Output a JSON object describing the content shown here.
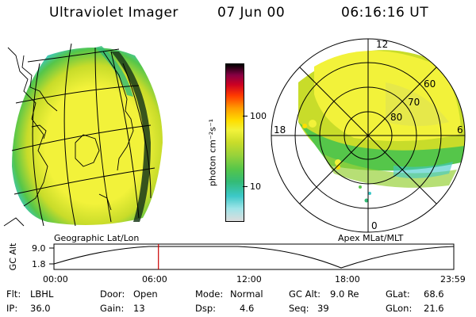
{
  "header": {
    "instrument": "Ultraviolet Imager",
    "date": "07 Jun 00",
    "time": "06:16:16 UT"
  },
  "left_map": {
    "caption": "Geographic Lat/Lon"
  },
  "right_map": {
    "caption": "Apex MLat/MLT",
    "mlt_labels": [
      "12",
      "18",
      "6",
      "0"
    ],
    "lat_labels": [
      "60",
      "70",
      "80"
    ]
  },
  "colorbar": {
    "unit_label": "photon cm⁻²s⁻¹",
    "ticks": [
      "100",
      "10"
    ],
    "colors": [
      "#dcdcdc",
      "#9fe4e8",
      "#3cc8c8",
      "#33bb77",
      "#55c64a",
      "#98d23a",
      "#c8dc2a",
      "#f2f23a",
      "#ffde00",
      "#ff9c00",
      "#ff3a00",
      "#cc0022",
      "#880044",
      "#3a1040",
      "#000000"
    ]
  },
  "timeline": {
    "y_axis_label": "GC Alt",
    "y_ticks": [
      "9.0",
      "1.8"
    ],
    "x_ticks": [
      "00:00",
      "06:00",
      "12:00",
      "18:00",
      "23:59"
    ],
    "current_time_fraction": 0.2613
  },
  "info": {
    "filter_label": "Flt:",
    "filter_value": "LBHL",
    "ip_label": "IP:",
    "ip_value": "36.0",
    "door_label": "Door:",
    "door_value": "Open",
    "gain_label": "Gain:",
    "gain_value": "13",
    "mode_label": "Mode:",
    "mode_value": "Normal",
    "dsp_label": "Dsp:",
    "dsp_value": "4.6",
    "gcalt_label": "GC Alt:",
    "gcalt_value": "9.0 Re",
    "seq_label": "Seq:",
    "seq_value": "39",
    "glat_label": "GLat:",
    "glat_value": "68.6",
    "glon_label": "GLon:",
    "glon_value": "21.6"
  }
}
